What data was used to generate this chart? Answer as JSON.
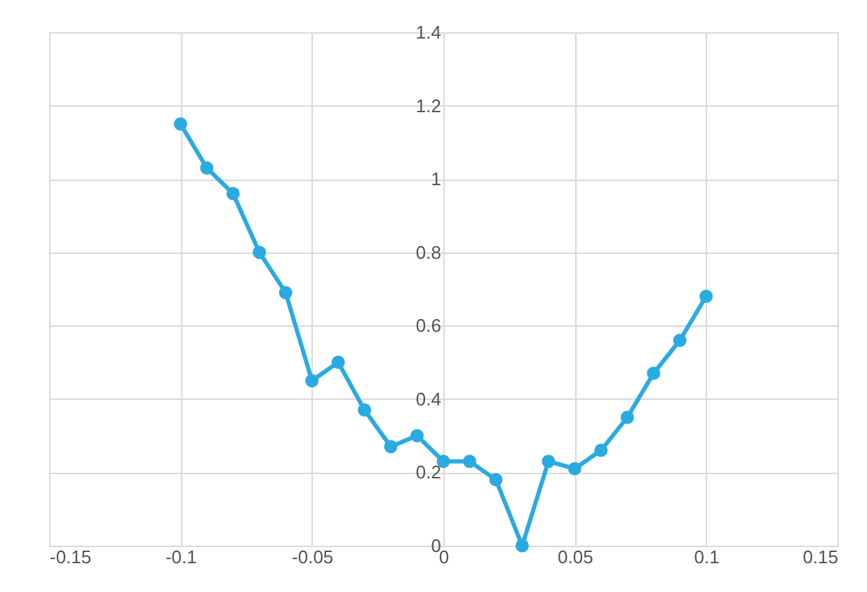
{
  "chart_data": {
    "type": "line",
    "x": [
      -0.1,
      -0.09,
      -0.08,
      -0.07,
      -0.06,
      -0.05,
      -0.04,
      -0.03,
      -0.02,
      -0.01,
      0,
      0.01,
      0.02,
      0.03,
      0.04,
      0.05,
      0.06,
      0.07,
      0.08,
      0.09,
      0.1
    ],
    "series": [
      {
        "color": "#29abe2",
        "values": [
          1.15,
          1.03,
          0.96,
          0.8,
          0.69,
          0.45,
          0.5,
          0.37,
          0.27,
          0.3,
          0.23,
          0.23,
          0.18,
          0,
          0.23,
          0.21,
          0.26,
          0.35,
          0.47,
          0.56,
          0.68
        ]
      }
    ],
    "xlim": [
      -0.15,
      0.15
    ],
    "xticks": [
      -0.15,
      -0.1,
      -0.05,
      0,
      0.05,
      0.1,
      0.15
    ],
    "ylim": [
      0,
      1.4
    ],
    "yticks": [
      0,
      0.2,
      0.4,
      0.6,
      0.8,
      1,
      1.2,
      1.4
    ],
    "grid": true,
    "marker": "circle",
    "line_style": "solid"
  }
}
